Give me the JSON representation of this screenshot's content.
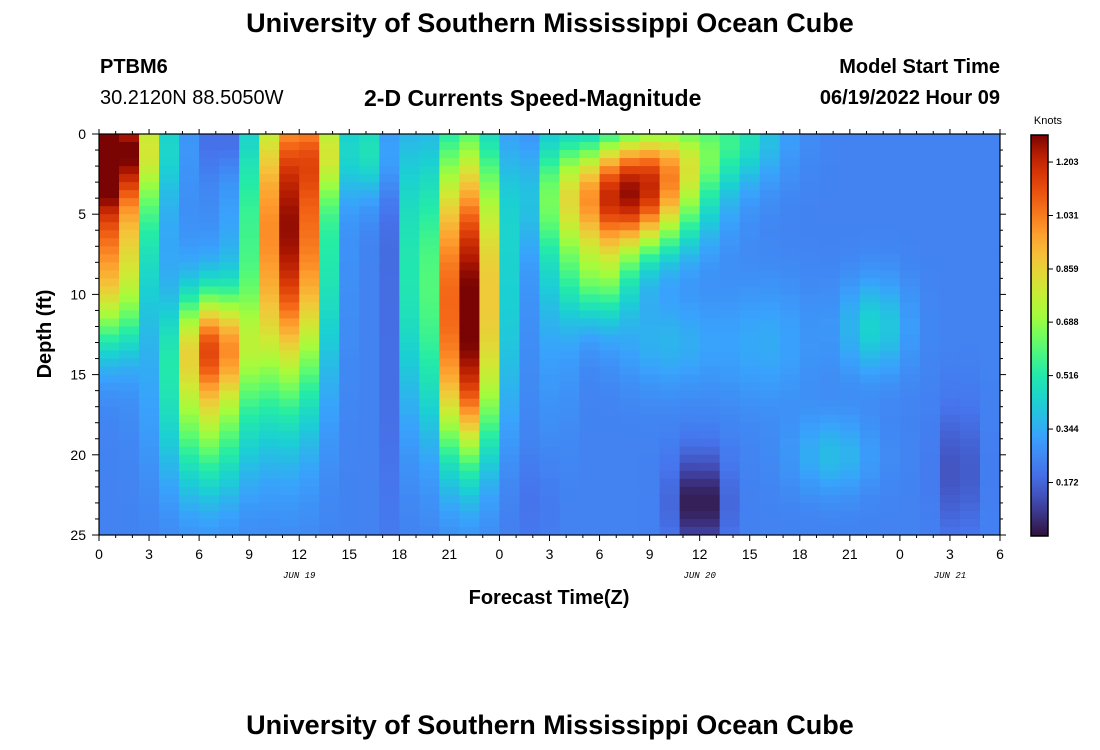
{
  "header": {
    "title_top": "University of Southern Mississippi Ocean Cube",
    "station": "PTBM6",
    "coords": "30.2120N  88.5050W",
    "plot_title": "2-D Currents Speed-Magnitude",
    "model_start_label": "Model Start Time",
    "model_start_value": "06/19/2022 Hour 09",
    "title_bottom": "University of Southern Mississippi Ocean Cube"
  },
  "chart_data": {
    "type": "heatmap",
    "title": "2-D Currents Speed-Magnitude",
    "xlabel": "Forecast Time(Z)",
    "ylabel": "Depth (ft)",
    "x_ticks": [
      "0",
      "3",
      "6",
      "9",
      "12",
      "15",
      "18",
      "21",
      "0",
      "3",
      "6",
      "9",
      "12",
      "15",
      "18",
      "21",
      "0",
      "3",
      "6"
    ],
    "x_range_hours": [
      0,
      54
    ],
    "y_ticks": [
      "0",
      "5",
      "10",
      "15",
      "20",
      "25"
    ],
    "ylim": [
      0,
      25
    ],
    "date_labels": [
      {
        "text": "JUN 19",
        "hour": 12
      },
      {
        "text": "JUN 20",
        "hour": 36
      },
      {
        "text": "JUN 21",
        "hour": 51
      }
    ],
    "colorbar": {
      "unit": "Knots",
      "ticks": [
        "1.203",
        "1.031",
        "0.859",
        "0.688",
        "0.516",
        "0.344",
        "0.172"
      ],
      "min": 0.0,
      "max": 1.29
    },
    "features": [
      {
        "t": 0.5,
        "d": 3,
        "st": 2.5,
        "sd": 6,
        "v": 0.9
      },
      {
        "t": 0.5,
        "d": 0.5,
        "st": 3,
        "sd": 3,
        "v": 0.55
      },
      {
        "t": 1.0,
        "d": 10,
        "st": 1.5,
        "sd": 4,
        "v": 0.4
      },
      {
        "t": 6.5,
        "d": 16,
        "st": 2.5,
        "sd": 6,
        "v": 0.55
      },
      {
        "t": 7,
        "d": 13,
        "st": 2,
        "sd": 3,
        "v": 0.45
      },
      {
        "t": 11,
        "d": 6,
        "st": 2,
        "sd": 10,
        "v": 0.85
      },
      {
        "t": 12.5,
        "d": 6,
        "st": 1.5,
        "sd": 10,
        "v": 0.35
      },
      {
        "t": 13.5,
        "d": 1,
        "st": 1.5,
        "sd": 3,
        "v": 0.35
      },
      {
        "t": 16.5,
        "d": 1,
        "st": 1.2,
        "sd": 3,
        "v": 0.25
      },
      {
        "t": 17.8,
        "d": 7,
        "st": 0.8,
        "sd": 14,
        "v": -0.18
      },
      {
        "t": 18.5,
        "d": 8,
        "st": 1.0,
        "sd": 10,
        "v": 0.28
      },
      {
        "t": 22,
        "d": 9,
        "st": 2.0,
        "sd": 9,
        "v": 1.0
      },
      {
        "t": 22,
        "d": 16,
        "st": 1.5,
        "sd": 5,
        "v": 0.35
      },
      {
        "t": 27.5,
        "d": 6,
        "st": 1.0,
        "sd": 10,
        "v": 0.18
      },
      {
        "t": 31.5,
        "d": 4,
        "st": 4,
        "sd": 3.5,
        "v": 0.95
      },
      {
        "t": 30,
        "d": 9,
        "st": 2,
        "sd": 3,
        "v": 0.35
      },
      {
        "t": 34,
        "d": 1.5,
        "st": 3,
        "sd": 2.5,
        "v": 0.3
      },
      {
        "t": 38,
        "d": 0,
        "st": 3,
        "sd": 3,
        "v": 0.25
      },
      {
        "t": 34,
        "d": 13,
        "st": 3,
        "sd": 3,
        "v": 0.12
      },
      {
        "t": 46.5,
        "d": 12,
        "st": 2,
        "sd": 3,
        "v": 0.2
      },
      {
        "t": 44,
        "d": 20,
        "st": 2.5,
        "sd": 2.5,
        "v": 0.14
      },
      {
        "t": 40,
        "d": 13,
        "st": 3,
        "sd": 4,
        "v": 0.1
      },
      {
        "t": 36,
        "d": 23,
        "st": 1.5,
        "sd": 3,
        "v": -0.25
      },
      {
        "t": 26,
        "d": 23,
        "st": 1.5,
        "sd": 3,
        "v": -0.04
      },
      {
        "t": 51.5,
        "d": 21,
        "st": 1.2,
        "sd": 4,
        "v": -0.12
      },
      {
        "t": 7.5,
        "d": 0.5,
        "st": 1.2,
        "sd": 2,
        "v": -0.1
      }
    ],
    "base_value": 0.24
  }
}
